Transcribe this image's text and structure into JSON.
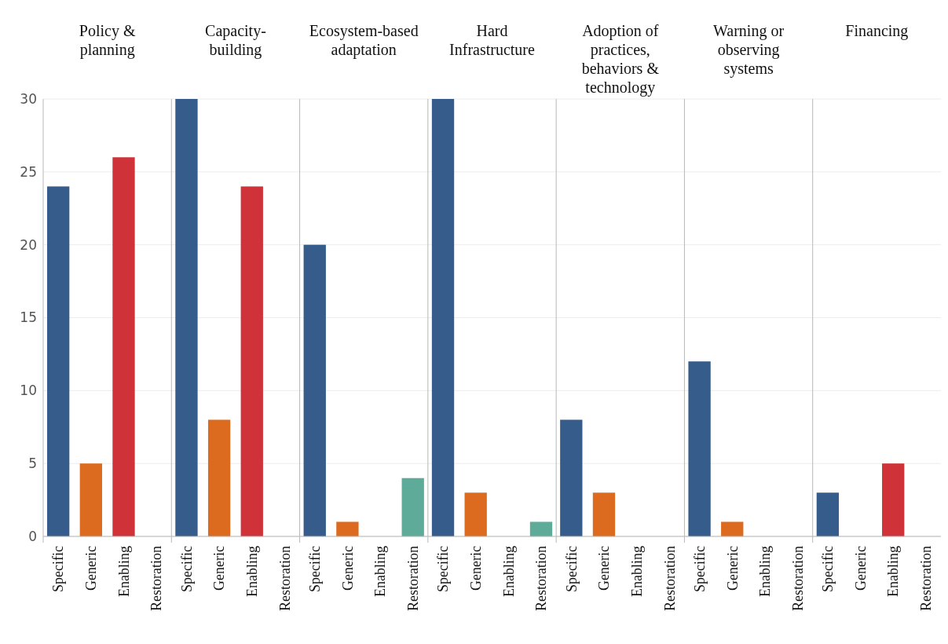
{
  "chart_data": [
    {
      "type": "bar",
      "title": "Policy & planning",
      "categories": [
        "Specific",
        "Generic",
        "Enabling",
        "Restoration"
      ],
      "values": [
        24,
        5,
        26,
        0
      ],
      "colors": [
        "#355c8a",
        "#dc6b1f",
        "#d0323a",
        "#5fab9a"
      ],
      "ylim": [
        0,
        30
      ],
      "yticks": [
        0,
        5,
        10,
        15,
        20,
        25,
        30
      ],
      "grid": "y"
    },
    {
      "type": "bar",
      "title": "Capacity-building",
      "categories": [
        "Specific",
        "Generic",
        "Enabling",
        "Restoration"
      ],
      "values": [
        30,
        8,
        24,
        0
      ],
      "colors": [
        "#355c8a",
        "#dc6b1f",
        "#d0323a",
        "#5fab9a"
      ],
      "ylim": [
        0,
        30
      ],
      "yticks": [
        0,
        5,
        10,
        15,
        20,
        25,
        30
      ],
      "grid": "y",
      "tick_labels": "x"
    },
    {
      "type": "bar",
      "title": "Ecosystem-based adaptation",
      "categories": [
        "Specific",
        "Generic",
        "Enabling",
        "Restoration"
      ],
      "values": [
        20,
        1,
        0,
        4
      ],
      "colors": [
        "#355c8a",
        "#dc6b1f",
        "#d0323a",
        "#5fab9a"
      ],
      "ylim": [
        0,
        30
      ],
      "yticks": [
        0,
        5,
        10,
        15,
        20,
        25,
        30
      ],
      "grid": "y",
      "tick_labels": "x"
    },
    {
      "type": "bar",
      "title": "Hard Infrastructure",
      "categories": [
        "Specific",
        "Generic",
        "Enabling",
        "Restoration"
      ],
      "values": [
        30,
        3,
        0,
        1
      ],
      "colors": [
        "#355c8a",
        "#dc6b1f",
        "#d0323a",
        "#5fab9a"
      ],
      "ylim": [
        0,
        30
      ],
      "yticks": [
        0,
        5,
        10,
        15,
        20,
        25,
        30
      ],
      "grid": "y",
      "tick_labels": "x"
    },
    {
      "type": "bar",
      "title": "Adoption of practices, behaviors & technology",
      "categories": [
        "Specific",
        "Generic",
        "Enabling",
        "Restoration"
      ],
      "values": [
        8,
        3,
        0,
        0
      ],
      "colors": [
        "#355c8a",
        "#dc6b1f",
        "#d0323a",
        "#5fab9a"
      ],
      "ylim": [
        0,
        30
      ],
      "yticks": [
        0,
        5,
        10,
        15,
        20,
        25,
        30
      ],
      "grid": "y",
      "tick_labels": "x"
    },
    {
      "type": "bar",
      "title": "Warning or observing systems",
      "categories": [
        "Specific",
        "Generic",
        "Enabling",
        "Restoration"
      ],
      "values": [
        12,
        1,
        0,
        0
      ],
      "colors": [
        "#355c8a",
        "#dc6b1f",
        "#d0323a",
        "#5fab9a"
      ],
      "ylim": [
        0,
        30
      ],
      "yticks": [
        0,
        5,
        10,
        15,
        20,
        25,
        30
      ],
      "grid": "y",
      "tick_labels": "x"
    },
    {
      "type": "bar",
      "title": "Financing",
      "categories": [
        "Specific",
        "Generic",
        "Enabling",
        "Restoration"
      ],
      "values": [
        3,
        0,
        5,
        0
      ],
      "colors": [
        "#355c8a",
        "#dc6b1f",
        "#d0323a",
        "#5fab9a"
      ],
      "ylim": [
        0,
        30
      ],
      "yticks": [
        0,
        5,
        10,
        15,
        20,
        25,
        30
      ],
      "grid": "y",
      "tick_labels": "x"
    }
  ]
}
